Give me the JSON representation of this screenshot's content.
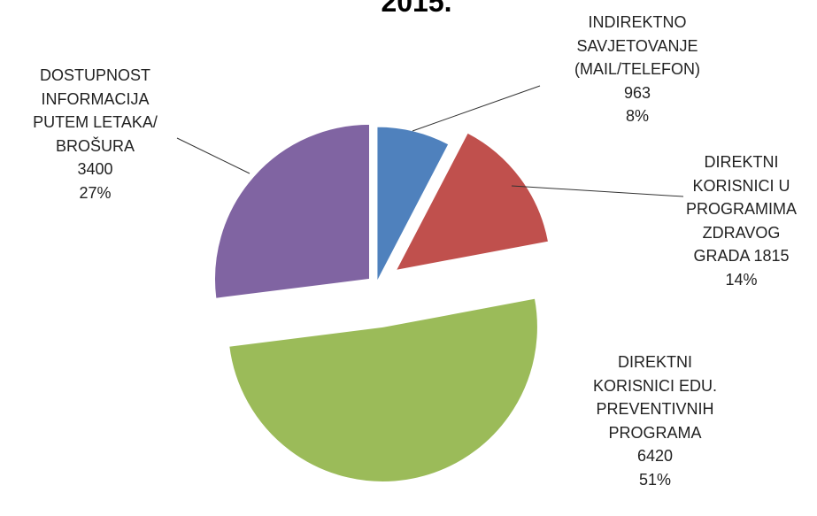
{
  "chart_data": {
    "type": "pie",
    "title": "2015.",
    "categories": [
      "INDIREKTNO\nSAVJETOVANJE\n(MAIL/TELEFON)",
      "DIREKTNI\nKORISNICI U\nPROGRAMIMA\nZDRAVOG\nGRADA",
      "DIREKTNI\nKORISNICI EDU.\nPREVENTIVNIH\nPROGRAMA",
      "DOSTUPNOST\nINFORMACIJA\nPUTEM LETAKA/\nBROŠURA"
    ],
    "values": [
      963,
      1815,
      6420,
      3400
    ],
    "percent_labels": [
      "8%",
      "14%",
      "51%",
      "27%"
    ],
    "colors": [
      "#4f81bd",
      "#c0504d",
      "#9bbb59",
      "#8064a2"
    ]
  }
}
